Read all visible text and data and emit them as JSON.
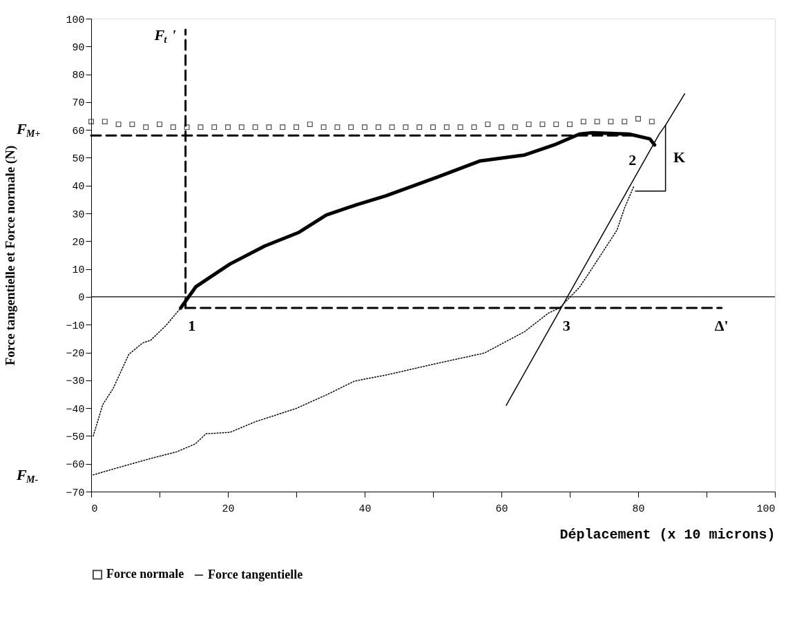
{
  "chart_data": {
    "type": "line",
    "xlabel": "Déplacement (x 10 microns)",
    "ylabel": "Force tangentielle et Force normale (N)",
    "xlim": [
      0,
      100
    ],
    "ylim": [
      -70,
      100
    ],
    "xticks": [
      0,
      {
        "value": 10,
        "label": null
      },
      20,
      {
        "value": 30,
        "label": null
      },
      40,
      {
        "value": 50,
        "label": null
      },
      60,
      {
        "value": 70,
        "label": null
      },
      80,
      {
        "value": 90,
        "label": null
      },
      100
    ],
    "yticks": [
      -70,
      -60,
      -50,
      -40,
      -30,
      -20,
      -10,
      0,
      10,
      20,
      30,
      40,
      50,
      60,
      70,
      80,
      90,
      100
    ],
    "grid": false,
    "legend": "bottom",
    "series": [
      {
        "name": "Force normale",
        "type": "scatter",
        "marker": "square",
        "color": "#000000",
        "x": [
          0,
          2,
          4,
          6,
          8,
          10,
          12,
          14,
          16,
          18,
          20,
          22,
          24,
          26,
          28,
          30,
          32,
          34,
          36,
          38,
          40,
          42,
          44,
          46,
          48,
          50,
          52,
          54,
          56,
          58,
          60,
          62,
          64,
          66,
          68,
          70,
          72,
          74,
          76,
          78,
          80,
          82
        ],
        "values": [
          63,
          63,
          62,
          62,
          61,
          62,
          61,
          61,
          61,
          61,
          61,
          61,
          61,
          61,
          61,
          61,
          62,
          61,
          61,
          61,
          61,
          61,
          61,
          61,
          61,
          61,
          61,
          61,
          61,
          62,
          61,
          61,
          62,
          62,
          62,
          62,
          63,
          63,
          63,
          63,
          64,
          63
        ]
      },
      {
        "name": "Force tangentielle",
        "type": "line",
        "line_style": "solid",
        "color": "#000000",
        "x": [
          13.1,
          15.3,
          17.3,
          20.3,
          25.4,
          30.4,
          34.4,
          38.8,
          43.1,
          50.6,
          56.8,
          63.4,
          67.7,
          71.4,
          73.3,
          78.7,
          81.7,
          82.4
        ],
        "values": [
          -4,
          3.6,
          6.9,
          11.8,
          18.3,
          23.2,
          29.4,
          33.1,
          36.3,
          43,
          48.8,
          51,
          54.6,
          58.5,
          59,
          58.5,
          56.8,
          54.6
        ]
      },
      {
        "type": "line",
        "line_style": "dotted",
        "color": "#000000",
        "x": [
          0.3,
          1.7,
          3.2,
          5.5,
          7.5,
          8.7,
          10.9,
          13.1
        ],
        "values": [
          -50,
          -38.7,
          -33,
          -20.7,
          -16.6,
          -15.6,
          -10.4,
          -4
        ]
      },
      {
        "type": "line",
        "line_style": "dotted",
        "color": "#000000",
        "x": [
          0.3,
          3.2,
          8.7,
          12.5,
          15.2,
          16.8,
          20.3,
          24.1,
          30,
          34.6,
          38.5,
          43.5,
          49.7,
          57.5,
          63.4,
          66.9,
          68.5,
          71.4,
          72.8,
          76.9,
          78,
          79.4
        ],
        "values": [
          -64,
          -61.9,
          -58.1,
          -55.7,
          -52.9,
          -49.2,
          -48.7,
          -44.8,
          -40.1,
          -35,
          -30.3,
          -27.9,
          -24.4,
          -20.2,
          -12.5,
          -5.8,
          -4,
          3.4,
          8.5,
          24,
          31.9,
          40
        ]
      },
      {
        "type": "line",
        "line_style": "solid",
        "color": "#000000",
        "x": [
          60.7,
          83.1,
          84,
          86.8
        ],
        "values": [
          -39,
          58.6,
          61.7,
          73
        ]
      },
      {
        "type": "line",
        "line_style": "solid",
        "color": "#000000",
        "x": [
          79.6,
          84,
          84
        ],
        "values": [
          38,
          38,
          61.7
        ]
      },
      {
        "line_style": "dashed",
        "color": "#000000",
        "x": [
          13.8,
          13.8
        ],
        "values": [
          -4,
          96
        ]
      },
      {
        "line_style": "dashed",
        "color": "#000000",
        "x": [
          13.8,
          92.2
        ],
        "values": [
          -4,
          -4
        ]
      },
      {
        "line_style": "dashed",
        "color": "#000000",
        "x": [
          0,
          79
        ],
        "values": [
          58,
          58
        ]
      }
    ],
    "ref_lines": [
      {
        "axis": "y",
        "value": 0,
        "color": "#000000"
      }
    ],
    "annotations": [
      {
        "text": "F$_{t}$'",
        "x": 13.8,
        "y": 96
      },
      "F$_{M+}$",
      "F$_{M-}$",
      {
        "text": "1",
        "x": 13.1,
        "y": -4
      },
      {
        "text": "2",
        "x": 82.4,
        "y": 54.6
      },
      {
        "text": "K",
        "x": 84,
        "y": 50
      },
      {
        "text": "3",
        "x": 68.5,
        "y": -4
      },
      {
        "text": "Δ'",
        "x": 92.2,
        "y": -4
      }
    ]
  }
}
